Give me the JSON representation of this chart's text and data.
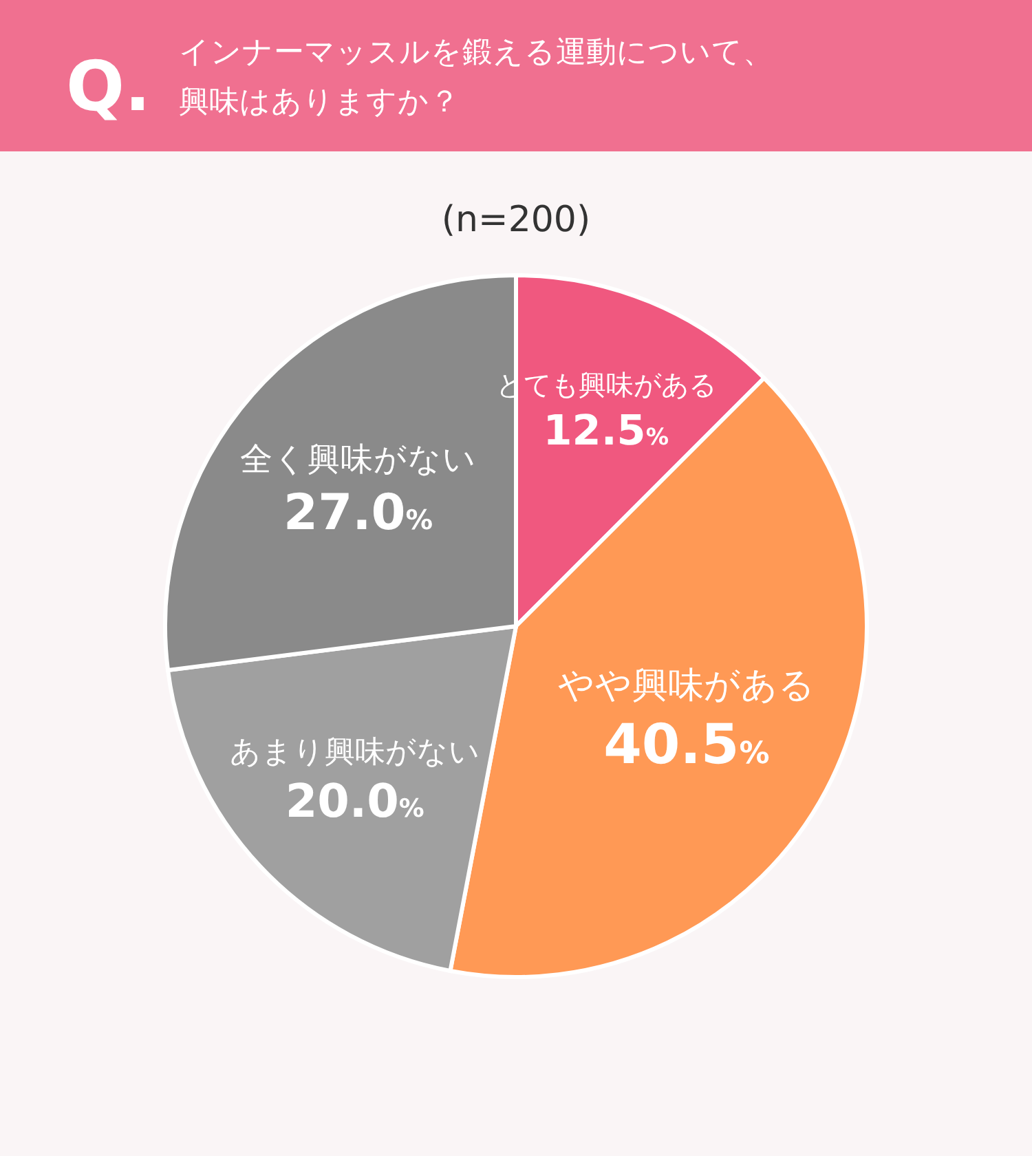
{
  "chart_data": {
    "type": "pie",
    "title": "インナーマッスルを鍛える運動について、興味はありますか？",
    "subtitle": "(n=200)",
    "annotations": [
      "Q."
    ],
    "categories": [
      "とても興味がある",
      "やや興味がある",
      "あまり興味がない",
      "全く興味がない"
    ],
    "values": [
      12.5,
      40.5,
      20.0,
      27.0
    ],
    "colors": [
      "#f0587f",
      "#ff9955",
      "#a0a0a0",
      "#8a8a8a"
    ],
    "value_labels": [
      "12.5%",
      "40.5%",
      "20.0%",
      "27.0%"
    ]
  }
}
